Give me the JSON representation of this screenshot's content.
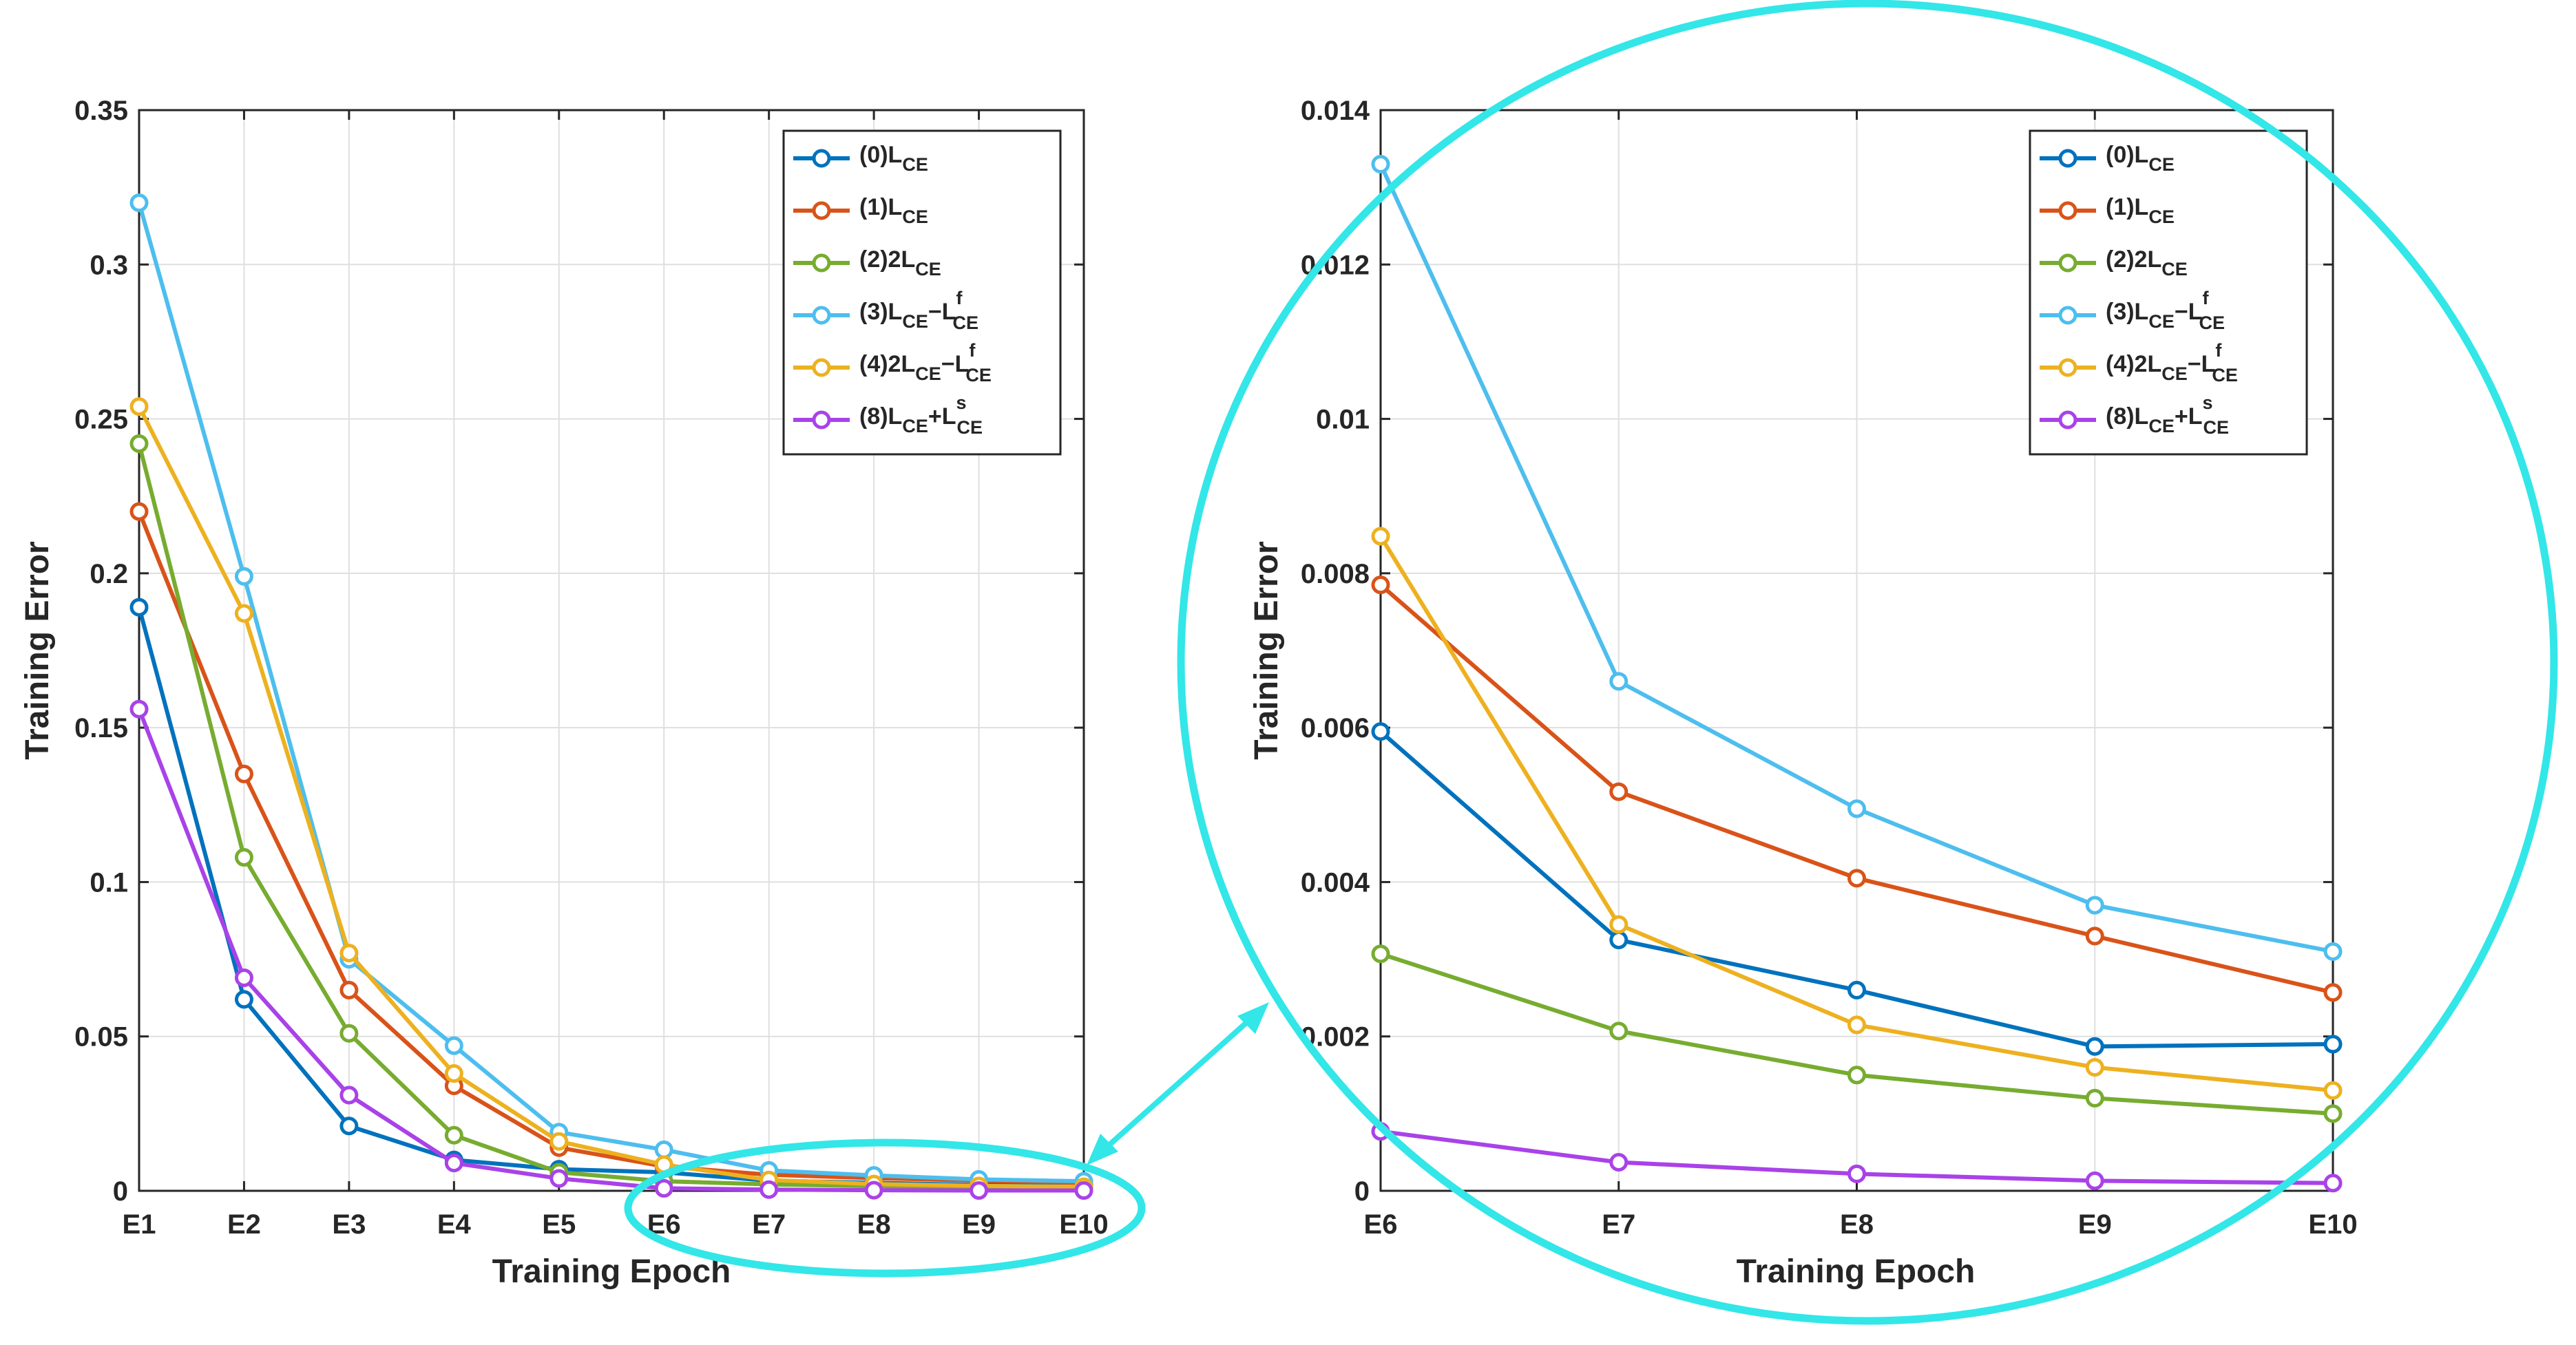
{
  "chart_data": [
    {
      "type": "line",
      "panel": "full",
      "xlabel": "Training Epoch",
      "ylabel": "Training Error",
      "categories": [
        "E1",
        "E2",
        "E3",
        "E4",
        "E5",
        "E6",
        "E7",
        "E8",
        "E9",
        "E10"
      ],
      "ylim": [
        0,
        0.35
      ],
      "yticks": [
        0,
        0.05,
        0.1,
        0.15,
        0.2,
        0.25,
        0.3,
        0.35
      ],
      "ytick_labels": [
        "0",
        "0.05",
        "0.1",
        "0.15",
        "0.2",
        "0.25",
        "0.3",
        "0.35"
      ],
      "grid": true,
      "legend_position": "top-right",
      "series": [
        {
          "name": "(0)L_CE",
          "values": [
            0.189,
            0.062,
            0.021,
            0.01,
            0.007,
            0.006,
            0.0033,
            0.0026,
            0.0019,
            0.0019
          ]
        },
        {
          "name": "(1)L_CE",
          "values": [
            0.22,
            0.135,
            0.065,
            0.034,
            0.014,
            0.0079,
            0.0052,
            0.0041,
            0.0033,
            0.0026
          ]
        },
        {
          "name": "(2)2L_CE",
          "values": [
            0.242,
            0.108,
            0.051,
            0.018,
            0.006,
            0.0031,
            0.0021,
            0.0015,
            0.0012,
            0.001
          ]
        },
        {
          "name": "(3)L_CE−L^f_CE",
          "values": [
            0.32,
            0.199,
            0.075,
            0.047,
            0.019,
            0.0133,
            0.0066,
            0.005,
            0.0037,
            0.0031
          ]
        },
        {
          "name": "(4)2L_CE−L^f_CE",
          "values": [
            0.254,
            0.187,
            0.077,
            0.038,
            0.016,
            0.0085,
            0.0035,
            0.0022,
            0.0016,
            0.0013
          ]
        },
        {
          "name": "(8)L_CE+L^s_CE",
          "values": [
            0.156,
            0.069,
            0.031,
            0.009,
            0.004,
            0.0008,
            0.0004,
            0.0002,
            0.0001,
            0.0001
          ]
        }
      ]
    },
    {
      "type": "line",
      "panel": "zoom",
      "xlabel": "Training Epoch",
      "ylabel": "Training Error",
      "categories": [
        "E6",
        "E7",
        "E8",
        "E9",
        "E10"
      ],
      "ylim": [
        0,
        0.014
      ],
      "yticks": [
        0,
        0.002,
        0.004,
        0.006,
        0.008,
        0.01,
        0.012,
        0.014
      ],
      "ytick_labels": [
        "0",
        "0.002",
        "0.004",
        "0.006",
        "0.008",
        "0.01",
        "0.012",
        "0.014"
      ],
      "grid": true,
      "legend_position": "top-right",
      "series": [
        {
          "name": "(0)L_CE",
          "values": [
            0.00595,
            0.00325,
            0.0026,
            0.00187,
            0.0019
          ]
        },
        {
          "name": "(1)L_CE",
          "values": [
            0.00785,
            0.00517,
            0.00405,
            0.0033,
            0.00257
          ]
        },
        {
          "name": "(2)2L_CE",
          "values": [
            0.00307,
            0.00207,
            0.0015,
            0.0012,
            0.001
          ]
        },
        {
          "name": "(3)L_CE−L^f_CE",
          "values": [
            0.0133,
            0.0066,
            0.00495,
            0.0037,
            0.0031
          ]
        },
        {
          "name": "(4)2L_CE−L^f_CE",
          "values": [
            0.00848,
            0.00345,
            0.00215,
            0.0016,
            0.0013
          ]
        },
        {
          "name": "(8)L_CE+L^s_CE",
          "values": [
            0.00077,
            0.00037,
            0.00022,
            0.00013,
            0.0001
          ]
        }
      ]
    }
  ],
  "legend": [
    {
      "prefix": "(0)L",
      "sub": "CE",
      "color": "#0072BD"
    },
    {
      "prefix": "(1)L",
      "sub": "CE",
      "color": "#D95319"
    },
    {
      "prefix": "(2)2L",
      "sub": "CE",
      "color": "#77AC30"
    },
    {
      "prefix": "(3)L",
      "sub": "CE",
      "mid": "−L",
      "sup": "f",
      "sub2": "CE",
      "color": "#4DBEEE"
    },
    {
      "prefix": "(4)2L",
      "sub": "CE",
      "mid": "−L",
      "sup": "f",
      "sub2": "CE",
      "color": "#EDB120"
    },
    {
      "prefix": "(8)L",
      "sub": "CE",
      "mid": "+L",
      "sup": "s",
      "sub2": "CE",
      "color": "#A942E8"
    }
  ],
  "highlight_color": "#33E6E8"
}
